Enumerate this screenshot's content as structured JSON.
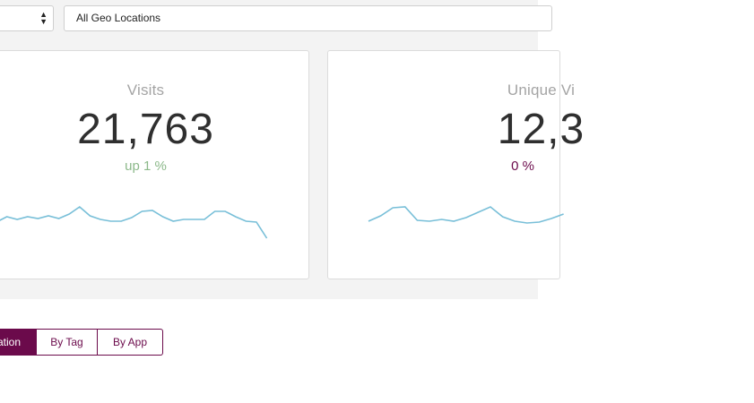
{
  "filters": {
    "left_select": {
      "value": ""
    },
    "geo_select": {
      "value": "All Geo Locations"
    }
  },
  "cards": [
    {
      "id": "visits",
      "title": "Visits",
      "value": "21,763",
      "change": "up 1 %",
      "change_color": "#8cb98a",
      "spark_color": "#78bfd8",
      "sparkline": [
        247,
        241,
        244,
        241,
        243,
        240,
        243,
        238,
        230,
        240,
        244,
        246,
        246,
        242,
        235,
        234,
        241,
        246,
        244,
        244,
        244,
        235,
        235,
        241,
        246,
        247,
        265
      ]
    },
    {
      "id": "unique-visitors",
      "title": "Unique Vi",
      "value": "12,3",
      "change": "0 %",
      "change_color": "#6b0a4b",
      "spark_color": "#78bfd8",
      "sparkline": [
        246,
        240,
        231,
        230,
        245,
        246,
        244,
        246,
        242,
        236,
        230,
        241,
        246,
        248,
        247,
        243,
        238
      ]
    }
  ],
  "tabs": [
    {
      "label": "ation",
      "active": true
    },
    {
      "label": "By Tag",
      "active": false
    },
    {
      "label": "By App",
      "active": false
    }
  ],
  "colors": {
    "accent": "#6b0a4b",
    "band_background": "#f3f3f3"
  }
}
